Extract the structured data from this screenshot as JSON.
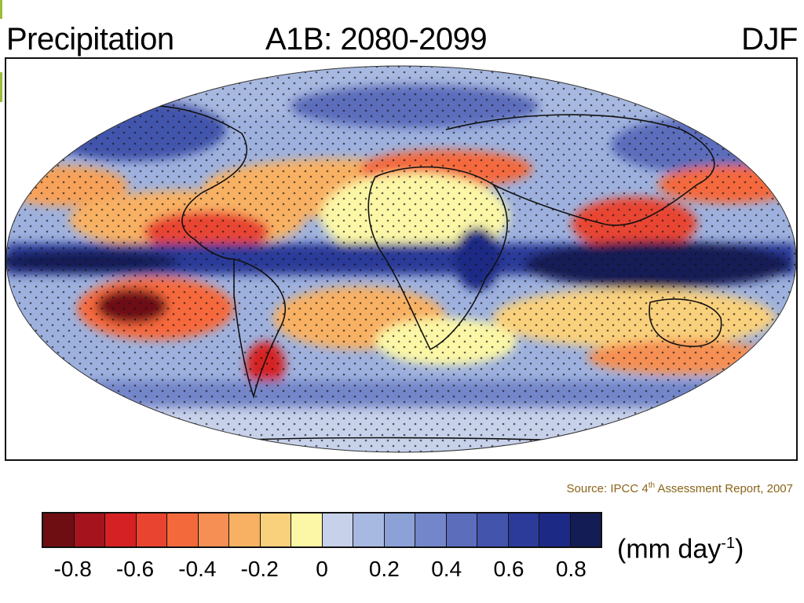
{
  "header": {
    "variable": "Precipitation",
    "scenario_period": "A1B: 2080-2099",
    "season": "DJF"
  },
  "source": {
    "prefix": "Source:  IPCC 4",
    "superscript": "th",
    "suffix": " Assessment Report, 2007"
  },
  "legend": {
    "units_main": "(mm day",
    "units_exp": "-1",
    "units_close": ")",
    "ticks": [
      "-0.8",
      "-0.6",
      "-0.4",
      "-0.2",
      "0",
      "0.2",
      "0.4",
      "0.6",
      "0.8"
    ],
    "colors": [
      "#6e0d12",
      "#a5141c",
      "#d52124",
      "#e84430",
      "#f4693c",
      "#f68f53",
      "#f8b163",
      "#f9d07c",
      "#fbf7a6",
      "#c7d1ea",
      "#a8b9e1",
      "#8ca1d6",
      "#7386c9",
      "#5c6dbc",
      "#4354ac",
      "#2c3b99",
      "#1d2a85",
      "#141c55"
    ]
  },
  "colors": {
    "title_accent": "#9dbb3c",
    "source_text": "#8a6418",
    "ocean_base": "#9eb1de"
  }
}
